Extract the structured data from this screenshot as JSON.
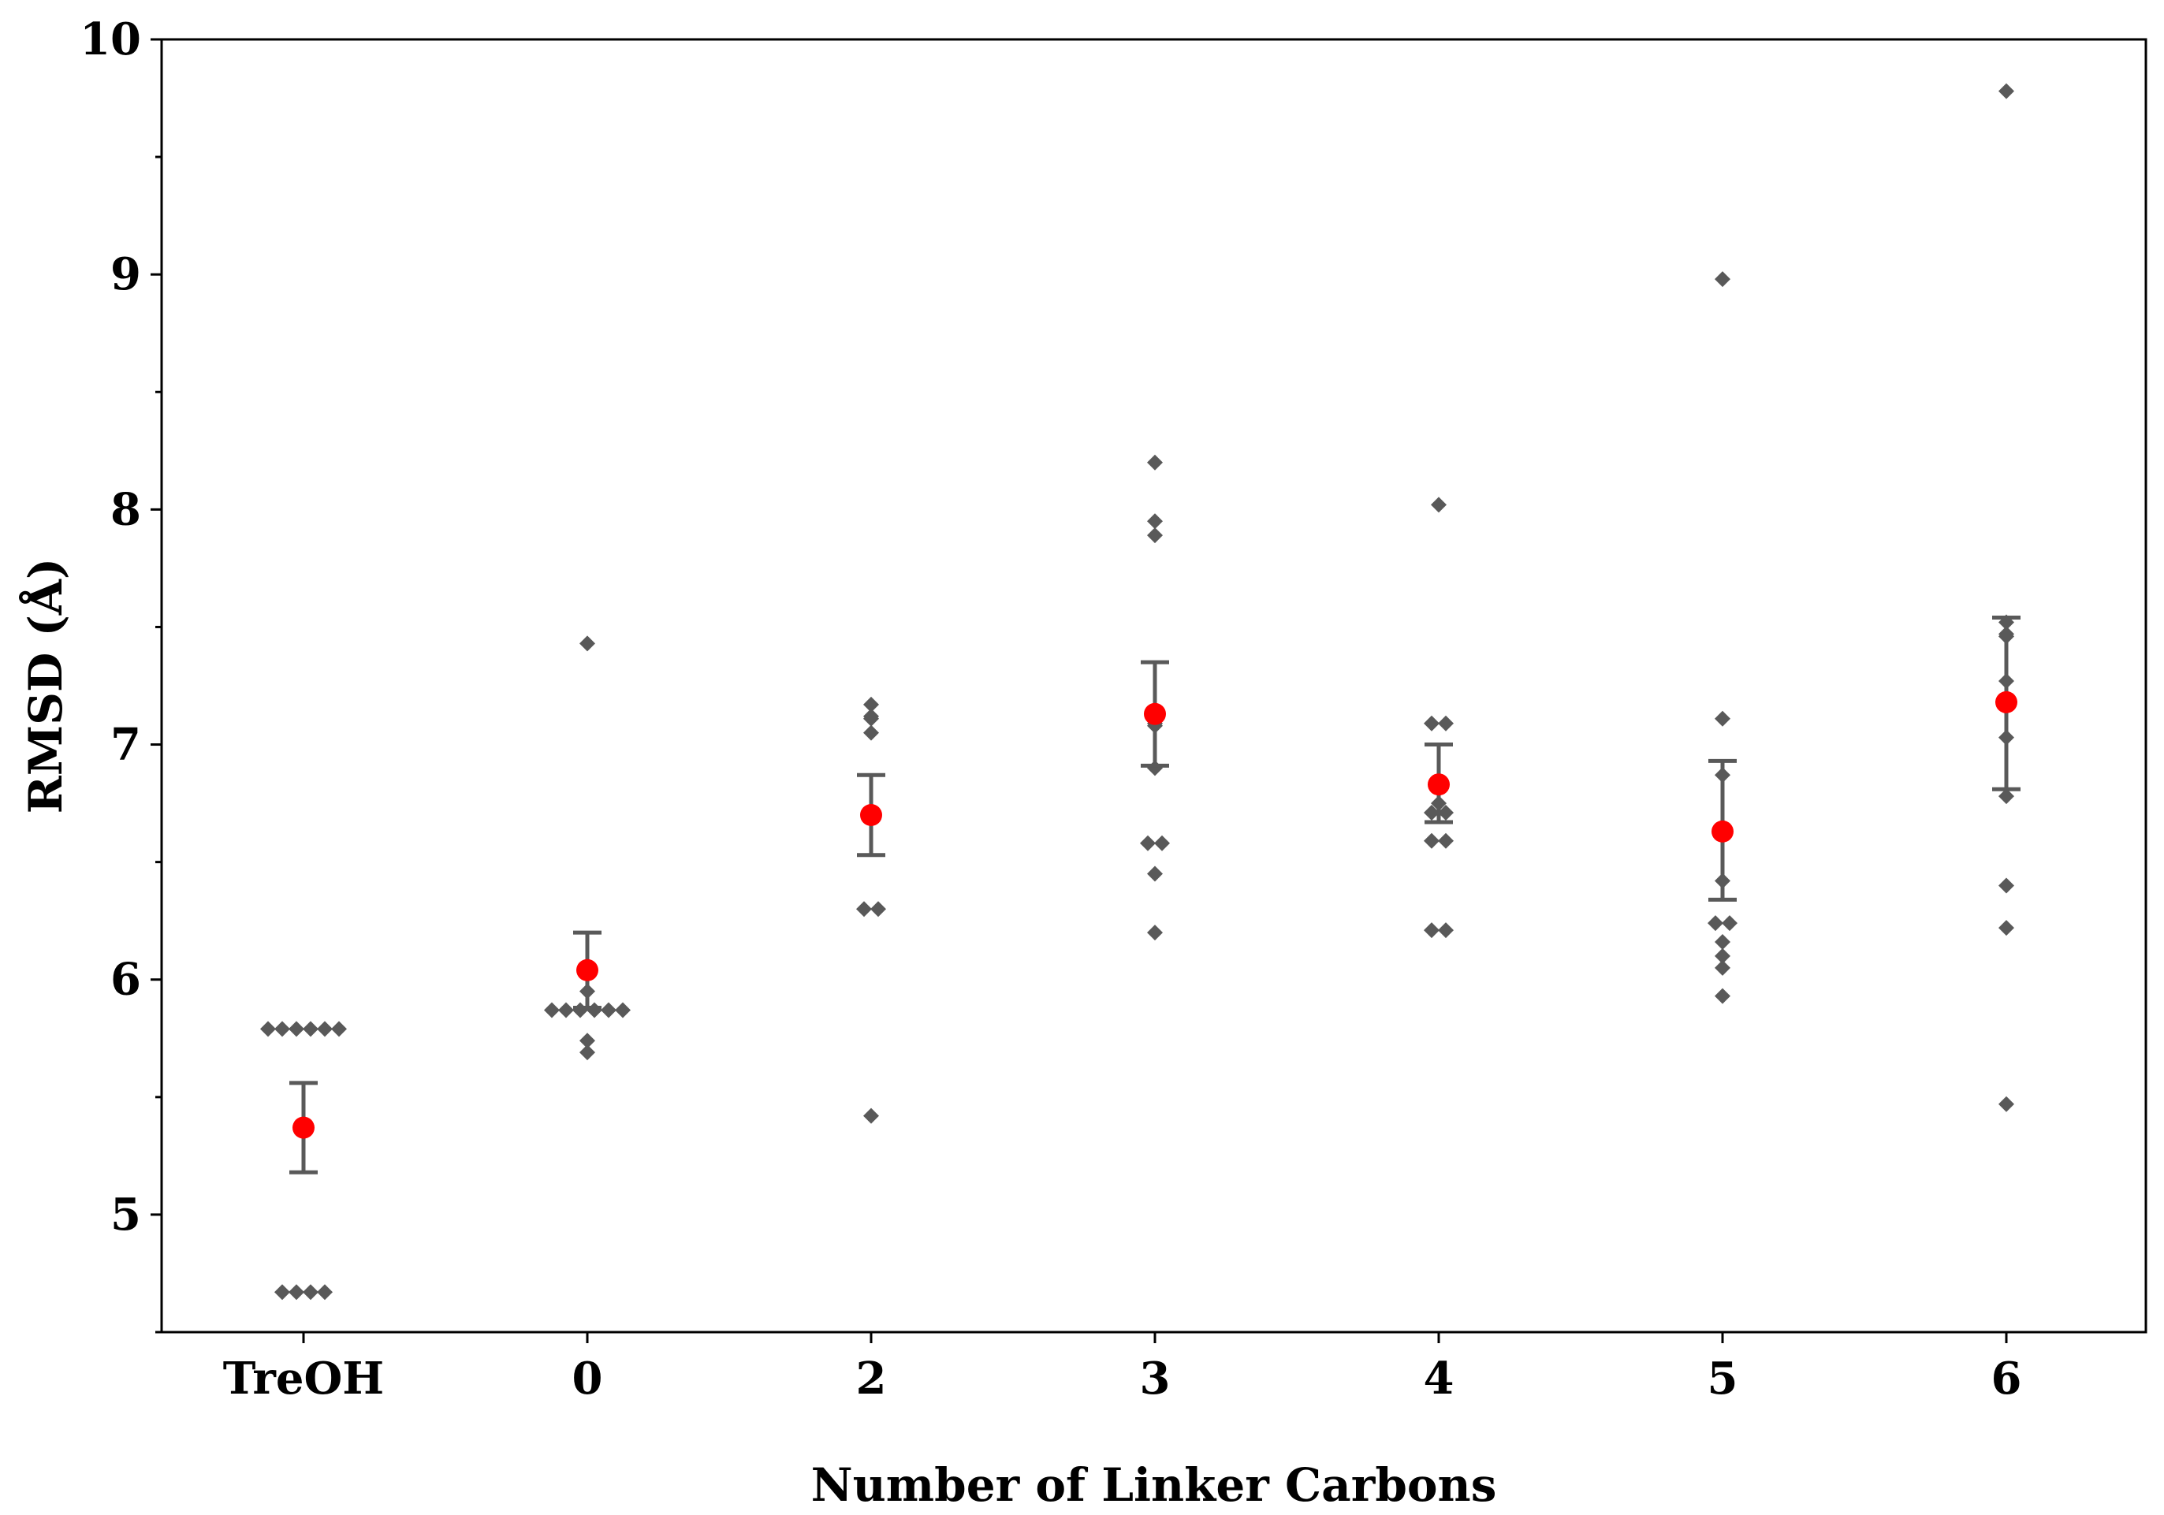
{
  "chart_data": {
    "type": "scatter",
    "xlabel": "Number of Linker Carbons",
    "ylabel": "RMSD (Å)",
    "ylim": [
      4.5,
      10
    ],
    "yticks": [
      "5",
      "6",
      "7",
      "8",
      "9",
      "10"
    ],
    "grid": false,
    "legend": "none",
    "colors": {
      "points": "#595959",
      "mean": "#ff0000",
      "error_bars": "#595959",
      "axes": "#000000"
    },
    "categories": [
      "TreOH",
      "0",
      "2",
      "3",
      "4",
      "5",
      "6"
    ],
    "points": [
      [
        5.79,
        5.79,
        5.79,
        5.79,
        5.79,
        5.79,
        4.67,
        4.67,
        4.67,
        4.67
      ],
      [
        7.43,
        5.95,
        5.87,
        5.87,
        5.87,
        5.87,
        5.87,
        5.87,
        5.74,
        5.69
      ],
      [
        7.17,
        7.12,
        7.11,
        7.05,
        6.69,
        6.3,
        6.3,
        5.42
      ],
      [
        8.2,
        7.95,
        7.89,
        7.09,
        7.08,
        6.9,
        6.58,
        6.58,
        6.45,
        6.2
      ],
      [
        8.02,
        7.09,
        7.09,
        6.75,
        6.71,
        6.71,
        6.59,
        6.59,
        6.21,
        6.21
      ],
      [
        8.98,
        7.11,
        6.87,
        6.42,
        6.24,
        6.24,
        6.16,
        6.1,
        6.05,
        5.93
      ],
      [
        9.78,
        7.52,
        7.47,
        7.46,
        7.27,
        7.03,
        6.78,
        6.4,
        6.22,
        5.47
      ]
    ],
    "means": [
      5.37,
      6.04,
      6.7,
      7.13,
      6.83,
      6.63,
      7.18
    ],
    "error_low": [
      5.18,
      5.88,
      6.53,
      6.91,
      6.67,
      6.34,
      6.81
    ],
    "error_high": [
      5.56,
      6.2,
      6.87,
      7.35,
      7.0,
      6.93,
      7.54
    ]
  }
}
